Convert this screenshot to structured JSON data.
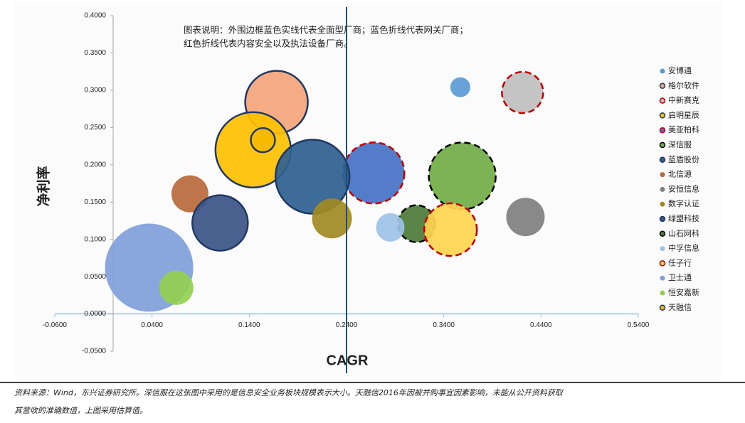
{
  "chart_data": {
    "type": "bubble",
    "annotation": [
      "图表说明：外围边框蓝色实线代表全面型厂商；蓝色折线代表网关厂商；",
      "红色折线代表内容安全以及执法设备厂商。"
    ],
    "x_label": "CAGR",
    "y_label": "净利率",
    "xlim": [
      -0.06,
      0.54
    ],
    "xticks": [
      {
        "value": -0.06,
        "label": "-0.0600"
      },
      {
        "value": 0.04,
        "label": "0.0400"
      },
      {
        "value": 0.14,
        "label": "0.1400"
      },
      {
        "value": 0.24,
        "label": "0.2400"
      },
      {
        "value": 0.34,
        "label": "0.3400"
      },
      {
        "value": 0.44,
        "label": "0.4400"
      },
      {
        "value": 0.54,
        "label": "0.5400"
      }
    ],
    "ylim": [
      -0.05,
      0.4
    ],
    "yticks": [
      {
        "value": -0.05,
        "label": "-0.0500"
      },
      {
        "value": 0,
        "label": "0.0000"
      },
      {
        "value": 0.05,
        "label": "0.0500"
      },
      {
        "value": 0.1,
        "label": "0.1000"
      },
      {
        "value": 0.15,
        "label": "0.1500"
      },
      {
        "value": 0.2,
        "label": "0.2000"
      },
      {
        "value": 0.25,
        "label": "0.2500"
      },
      {
        "value": 0.3,
        "label": "0.3000"
      },
      {
        "value": 0.35,
        "label": "0.3500"
      },
      {
        "value": 0.4,
        "label": "0.4000"
      }
    ],
    "reference_x": 0.24,
    "legend": "right",
    "series": [
      {
        "name": "安博通",
        "color": "#5b9bd5",
        "x": [
          0.357
        ],
        "values": [
          0.304
        ],
        "sizes": [
          14
        ]
      },
      {
        "name": "格尔软件",
        "color": "#f4a57a",
        "edgecolor": "#1f3864",
        "x": [
          0.168
        ],
        "values": [
          0.284
        ],
        "sizes": [
          44
        ]
      },
      {
        "name": "中新赛克",
        "color": "#bfbfbf",
        "edgecolor": "#c00000",
        "dashed": true,
        "x": [
          0.421
        ],
        "values": [
          0.297
        ],
        "sizes": [
          29
        ]
      },
      {
        "name": "启明星辰",
        "color": "#ffc000",
        "edgecolor": "#1f3864",
        "x": [
          0.144
        ],
        "values": [
          0.22
        ],
        "sizes": [
          53
        ]
      },
      {
        "name": "美亚柏科",
        "color": "#4472c4",
        "edgecolor": "#c00000",
        "dashed": true,
        "x": [
          0.268
        ],
        "values": [
          0.189
        ],
        "sizes": [
          43
        ]
      },
      {
        "name": "深信服",
        "color": "#70ad47",
        "edgecolor": "#000000",
        "dashed": true,
        "x": [
          0.359
        ],
        "values": [
          0.185
        ],
        "sizes": [
          47
        ]
      },
      {
        "name": "蓝盾股份",
        "color": "#2e5f8f",
        "edgecolor": "#1f3864",
        "x": [
          0.205
        ],
        "values": [
          0.184
        ],
        "sizes": [
          52
        ]
      },
      {
        "name": "北信源",
        "color": "#b8693a",
        "x": [
          0.079
        ],
        "values": [
          0.161
        ],
        "sizes": [
          26
        ]
      },
      {
        "name": "安恒信息",
        "color": "#7f7f7f",
        "x": [
          0.424
        ],
        "values": [
          0.13
        ],
        "sizes": [
          27
        ]
      },
      {
        "name": "数字认证",
        "color": "#a08a22",
        "x": [
          0.225
        ],
        "values": [
          0.128
        ],
        "sizes": [
          28
        ]
      },
      {
        "name": "绿盟科技",
        "color": "#3b5284",
        "edgecolor": "#1f3864",
        "x": [
          0.11
        ],
        "values": [
          0.122
        ],
        "sizes": [
          39
        ]
      },
      {
        "name": "山石网科",
        "color": "#4d7a3a",
        "edgecolor": "#000000",
        "dashed": true,
        "x": [
          0.312
        ],
        "values": [
          0.121
        ],
        "sizes": [
          26
        ]
      },
      {
        "name": "中孚信息",
        "color": "#9dc3e6",
        "x": [
          0.285
        ],
        "values": [
          0.116
        ],
        "sizes": [
          20
        ]
      },
      {
        "name": "任子行",
        "color": "#ffd54f",
        "edgecolor": "#c00000",
        "dashed": true,
        "x": [
          0.347
        ],
        "values": [
          0.113
        ],
        "sizes": [
          37
        ]
      },
      {
        "name": "卫士通",
        "color": "#7f9fd9",
        "x": [
          0.037
        ],
        "values": [
          0.062
        ],
        "sizes": [
          62
        ]
      },
      {
        "name": "恒安嘉新",
        "color": "#92d050",
        "x": [
          0.065
        ],
        "values": [
          0.035
        ],
        "sizes": [
          24
        ]
      },
      {
        "name": "天融信",
        "color": "#f5b800",
        "edgecolor": "#1f3864",
        "x": [
          0.154
        ],
        "values": [
          0.233
        ],
        "sizes": [
          17
        ]
      }
    ]
  },
  "footer": [
    "资料来源：Wind，东兴证券研究所。深信服在这张图中采用的是信息安全业务板块规模表示大小。天融信2016年因被并购事宜因素影响，未能从公开资料获取",
    "其营收的准确数值，上图采用估算值。"
  ]
}
